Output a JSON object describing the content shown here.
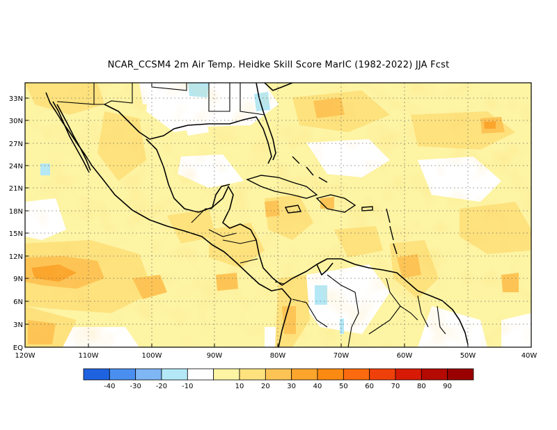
{
  "title": "NCAR_CCSM4  2m Air Temp. Heidke Skill Score MarIC (1982-2022) JJA Fcst",
  "lat_labels": [
    "33N",
    "30N",
    "27N",
    "24N",
    "21N",
    "18N",
    "15N",
    "12N",
    "9N",
    "6N",
    "3N",
    "EQ"
  ],
  "lon_labels": [
    "120W",
    "110W",
    "100W",
    "90W",
    "80W",
    "70W",
    "60W",
    "50W",
    "40W"
  ],
  "colorbar": {
    "colors": [
      "#1f62e0",
      "#4a8ff0",
      "#7fb6f4",
      "#b4e8f6",
      "#ffffff",
      "#fdf4a4",
      "#fde27e",
      "#fdc455",
      "#fba52c",
      "#fb8a12",
      "#fb6a0e",
      "#f0400a",
      "#d71a06",
      "#b40a02",
      "#9a0000"
    ],
    "labels": [
      "-40",
      "-30",
      "-20",
      "-10",
      "10",
      "20",
      "30",
      "40",
      "50",
      "60",
      "70",
      "80",
      "90"
    ]
  }
}
